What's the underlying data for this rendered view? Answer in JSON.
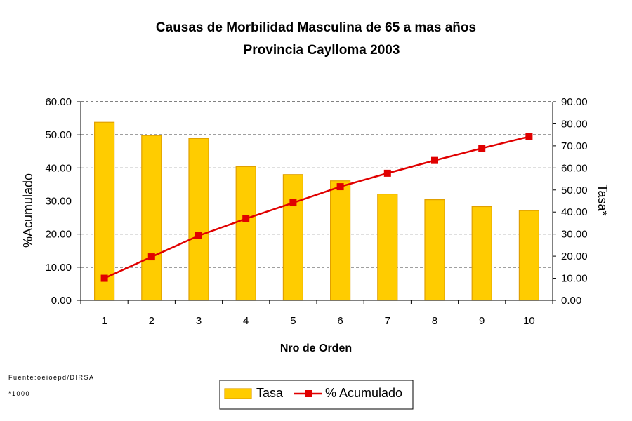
{
  "chart_data": {
    "type": "bar",
    "title": "Causas de Morbilidad Masculina de 65 a mas años",
    "subtitle": "Provincia Caylloma 2003",
    "xlabel": "Nro de Orden",
    "ylabel_left": "%Acumulado",
    "ylabel_right": "Tasa*",
    "categories": [
      "1",
      "2",
      "3",
      "4",
      "5",
      "6",
      "7",
      "8",
      "9",
      "10"
    ],
    "ylim_left": [
      0,
      60
    ],
    "ylim_right": [
      0,
      90
    ],
    "yticks_left": [
      "0.00",
      "10.00",
      "20.00",
      "30.00",
      "40.00",
      "50.00",
      "60.00"
    ],
    "yticks_right": [
      "0.00",
      "10.00",
      "20.00",
      "30.00",
      "40.00",
      "50.00",
      "60.00",
      "70.00",
      "80.00",
      "90.00"
    ],
    "grid": true,
    "series": [
      {
        "name": "Tasa",
        "type": "bar",
        "axis": "left",
        "color": "#FFCC00",
        "values": [
          53.8,
          49.8,
          48.9,
          40.4,
          38.0,
          36.1,
          32.1,
          30.4,
          28.3,
          27.1
        ]
      },
      {
        "name": "% Acumulado",
        "type": "line",
        "axis": "right",
        "color": "#E00000",
        "values": [
          10.0,
          19.7,
          29.3,
          37.0,
          44.2,
          51.5,
          57.6,
          63.4,
          68.9,
          74.2
        ]
      }
    ],
    "legend_position": "bottom-center",
    "notes": [
      "Fuente:oeioepd/DIRSA",
      "*1000"
    ]
  }
}
